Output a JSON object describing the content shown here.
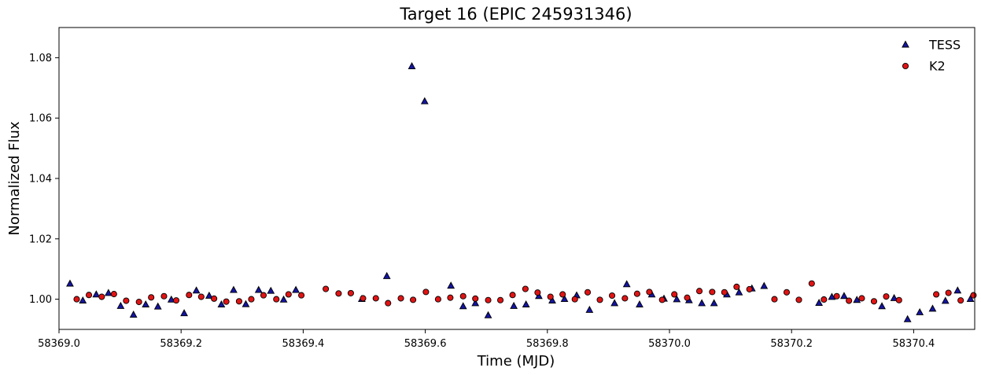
{
  "chart_data": {
    "type": "scatter",
    "title": "Target 16 (EPIC 245931346)",
    "xlabel": "Time (MJD)",
    "ylabel": "Normalized Flux",
    "xlim": [
      58369.0,
      58370.5
    ],
    "ylim": [
      0.99,
      1.09
    ],
    "x_ticks": [
      "58369.0",
      "58369.2",
      "58369.4",
      "58369.6",
      "58369.8",
      "58370.0",
      "58370.2",
      "58370.4"
    ],
    "y_ticks": [
      "1.00",
      "1.02",
      "1.04",
      "1.06",
      "1.08"
    ],
    "grid": false,
    "legend_position": "top-right",
    "series": [
      {
        "name": "TESS",
        "marker": "triangle",
        "color": "#1414a0",
        "edge_color": "#000000",
        "x": [
          58369.018,
          58369.039,
          58369.061,
          58369.081,
          58369.101,
          58369.122,
          58369.142,
          58369.162,
          58369.184,
          58369.205,
          58369.225,
          58369.246,
          58369.266,
          58369.286,
          58369.306,
          58369.327,
          58369.347,
          58369.368,
          58369.388,
          58369.496,
          58369.537,
          58369.578,
          58369.599,
          58369.642,
          58369.662,
          58369.682,
          58369.703,
          58369.745,
          58369.765,
          58369.786,
          58369.808,
          58369.828,
          58369.848,
          58369.869,
          58369.91,
          58369.93,
          58369.951,
          58369.971,
          58369.991,
          58370.012,
          58370.032,
          58370.053,
          58370.073,
          58370.094,
          58370.114,
          58370.135,
          58370.155,
          58370.245,
          58370.266,
          58370.286,
          58370.307,
          58370.348,
          58370.368,
          58370.39,
          58370.41,
          58370.431,
          58370.452,
          58370.472,
          58370.493
        ],
        "y": [
          1.0051,
          0.9995,
          1.0015,
          1.002,
          0.9977,
          0.9948,
          0.9982,
          0.9975,
          0.9998,
          0.9953,
          1.0028,
          1.0011,
          0.9982,
          1.003,
          0.9983,
          1.003,
          1.0027,
          0.9998,
          1.003,
          1.0,
          1.0076,
          1.0771,
          1.0655,
          1.0044,
          0.9976,
          0.9986,
          0.9946,
          0.9977,
          0.9982,
          1.001,
          0.9995,
          1.0,
          1.0012,
          0.9964,
          0.9986,
          1.0049,
          0.9982,
          1.0015,
          1.0001,
          0.9999,
          0.9996,
          0.9986,
          0.9986,
          1.0015,
          1.0022,
          1.0035,
          1.0043,
          0.9987,
          1.0007,
          1.001,
          0.9997,
          0.9976,
          1.0003,
          0.9933,
          0.9956,
          0.9968,
          0.9994,
          1.0028,
          1.0
        ]
      },
      {
        "name": "K2",
        "marker": "circle",
        "color": "#e01414",
        "edge_color": "#000000",
        "x": [
          58369.029,
          58369.049,
          58369.07,
          58369.09,
          58369.11,
          58369.131,
          58369.151,
          58369.172,
          58369.192,
          58369.213,
          58369.233,
          58369.254,
          58369.274,
          58369.295,
          58369.315,
          58369.335,
          58369.356,
          58369.376,
          58369.397,
          58369.437,
          58369.458,
          58369.478,
          58369.498,
          58369.519,
          58369.539,
          58369.56,
          58369.58,
          58369.601,
          58369.621,
          58369.641,
          58369.662,
          58369.682,
          58369.703,
          58369.723,
          58369.743,
          58369.764,
          58369.784,
          58369.805,
          58369.825,
          58369.845,
          58369.866,
          58369.886,
          58369.906,
          58369.927,
          58369.947,
          58369.967,
          58369.988,
          58370.008,
          58370.029,
          58370.049,
          58370.07,
          58370.09,
          58370.11,
          58370.131,
          58370.172,
          58370.192,
          58370.212,
          58370.233,
          58370.253,
          58370.274,
          58370.294,
          58370.315,
          58370.335,
          58370.355,
          58370.376,
          58370.437,
          58370.457,
          58370.477,
          58370.498
        ],
        "y": [
          1.0,
          1.0014,
          1.0008,
          1.0017,
          0.9995,
          0.9991,
          1.0006,
          1.001,
          0.9996,
          1.0014,
          1.0008,
          1.0002,
          0.9992,
          0.9993,
          1.0,
          1.0013,
          1.0,
          1.0016,
          1.0013,
          1.0034,
          1.0019,
          1.002,
          1.0003,
          1.0003,
          0.9987,
          1.0003,
          0.9998,
          1.0024,
          1.0,
          1.0005,
          1.001,
          1.0002,
          0.9997,
          0.9997,
          1.0014,
          1.0034,
          1.0022,
          1.0008,
          1.0016,
          1.0,
          1.0023,
          0.9998,
          1.0012,
          1.0003,
          1.0018,
          1.0024,
          0.9998,
          1.0016,
          1.0005,
          1.0027,
          1.0024,
          1.0023,
          1.0041,
          1.0033,
          1.0,
          1.0023,
          0.9998,
          1.0052,
          0.9999,
          1.001,
          0.9995,
          1.0003,
          0.9993,
          1.0009,
          0.9997,
          1.0016,
          1.0021,
          0.9996,
          1.0013
        ]
      }
    ]
  }
}
